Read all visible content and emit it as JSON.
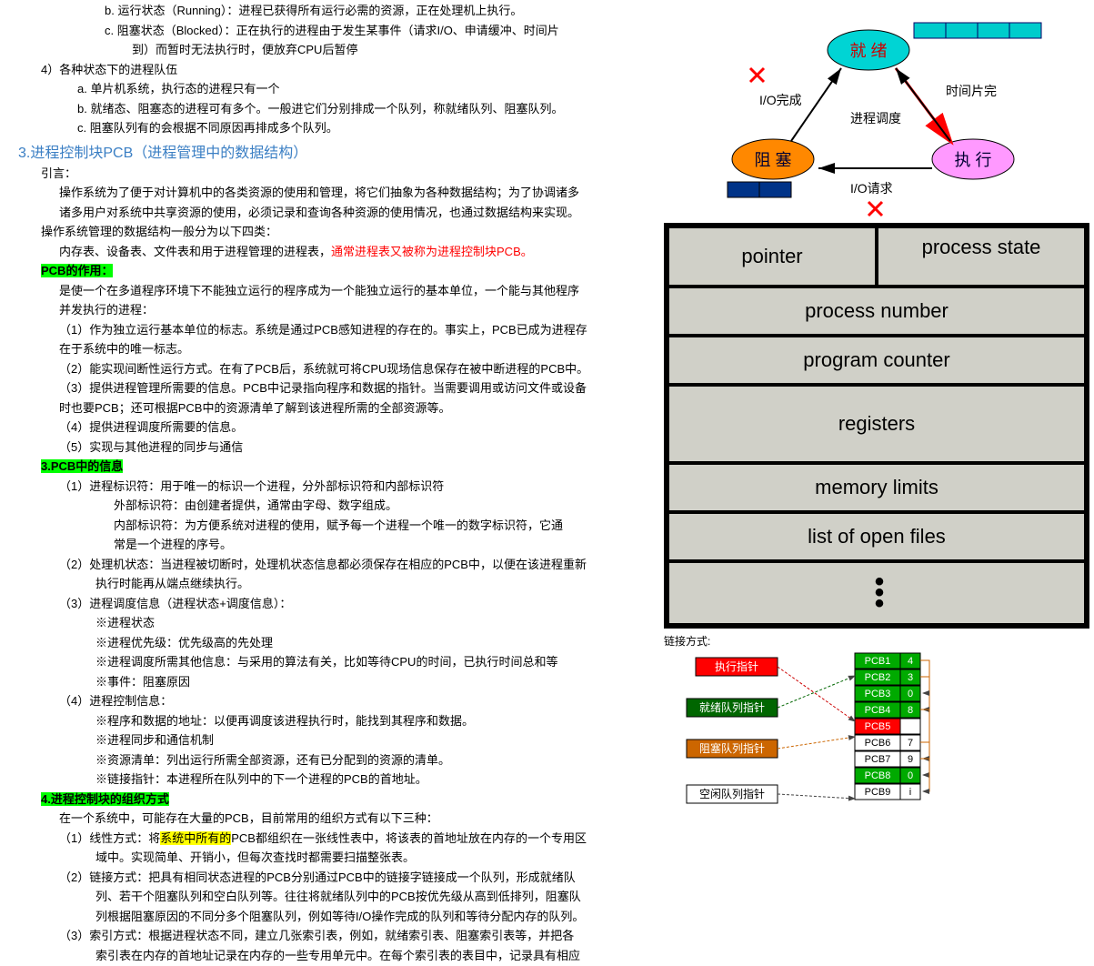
{
  "left": {
    "b": "b.  运行状态（Running）：进程已获得所有运行必需的资源，正在处理机上执行。",
    "c1": "c.  阻塞状态（Blocked）：正在执行的进程由于发生某事件（请求I/O、申请缓冲、时间片",
    "c2": "到）而暂时无法执行时，便放弃CPU后暂停",
    "q4": "4）各种状态下的进程队伍",
    "q4a": "a.   单片机系统，执行态的进程只有一个",
    "q4b": "b.   就绪态、阻塞态的进程可有多个。一般进它们分别排成一个队列，称就绪队列、阻塞队列。",
    "q4c": "c.   阻塞队列有的会根据不同原因再排成多个队列。",
    "title3": "3.进程控制块PCB（进程管理中的数据结构）",
    "intro": "引言：",
    "intro1": "操作系统为了便于对计算机中的各类资源的使用和管理，将它们抽象为各种数据结构；为了协调诸多",
    "intro2": "诸多用户对系统中共享资源的使用，必须记录和查询各种资源的使用情况，也通过数据结构来实现。",
    "os1": "操作系统管理的数据结构一般分为以下四类：",
    "os2": "内存表、设备表、文件表和用于进程管理的进程表，",
    "os2r": "通常进程表又被称为进程控制块PCB。",
    "pcb_role": "PCB的作用：",
    "pr1": "是使一个在多道程序环境下不能独立运行的程序成为一个能独立运行的基本单位，一个能与其他程序",
    "pr2": "并发执行的进程：",
    "pr3": "（1）作为独立运行基本单位的标志。系统是通过PCB感知进程的存在的。事实上，PCB已成为进程存",
    "pr4": "在于系统中的唯一标志。",
    "pr5": "（2）能实现间断性运行方式。在有了PCB后，系统就可将CPU现场信息保存在被中断进程的PCB中。",
    "pr6": "（3）提供进程管理所需要的信息。PCB中记录指向程序和数据的指针。当需要调用或访问文件或设备",
    "pr7": "时也要PCB；还可根据PCB中的资源清单了解到该进程所需的全部资源等。",
    "pr8": "（4）提供进程调度所需要的信息。",
    "pr9": "（5）实现与其他进程的同步与通信",
    "pcb_info": "3.PCB中的信息",
    "pi1": "（1）进程标识符：用于唯一的标识一个进程，分外部标识符和内部标识符",
    "pi2": "外部标识符：由创建者提供，通常由字母、数字组成。",
    "pi3": "内部标识符：为方便系统对进程的使用，赋予每一个进程一个唯一的数字标识符，它通",
    "pi4": "常是一个进程的序号。",
    "pi5": "（2）处理机状态：当进程被切断时，处理机状态信息都必须保存在相应的PCB中，以便在该进程重新",
    "pi6": "执行时能再从端点继续执行。",
    "pi7": "（3）进程调度信息（进程状态+调度信息）：",
    "pi8": "※进程状态",
    "pi9": "※进程优先级：优先级高的先处理",
    "pi10": "※进程调度所需其他信息：与采用的算法有关，比如等待CPU的时间，已执行时间总和等",
    "pi11": "※事件：阻塞原因",
    "pi12": "（4）进程控制信息：",
    "pi13": "※程序和数据的地址：以便再调度该进程执行时，能找到其程序和数据。",
    "pi14": "※进程同步和通信机制",
    "pi15": "※资源清单：列出运行所需全部资源，还有已分配到的资源的清单。",
    "pi16": "※链接指针：本进程所在队列中的下一个进程的PCB的首地址。",
    "pcb_org": "4.进程控制块的组织方式",
    "po1": "在一个系统中，可能存在大量的PCB，目前常用的组织方式有以下三种：",
    "po2a": "（1）线性方式：将",
    "po2b": "系统中所有的",
    "po2c": "PCB都组织在一张线性表中，将该表的首地址放在内存的一个专用区",
    "po3": "域中。实现简单、开销小，但每次查找时都需要扫描整张表。",
    "po4": "（2）链接方式：把具有相同状态进程的PCB分别通过PCB中的链接字链接成一个队列，形成就绪队",
    "po5": "列、若干个阻塞队列和空白队列等。往往将就绪队列中的PCB按优先级从高到低排列，阻塞队",
    "po6": "列根据阻塞原因的不同分多个阻塞队列，例如等待I/O操作完成的队列和等待分配内存的队列。",
    "po7": "（3）索引方式：根据进程状态不同，建立几张索引表，例如，就绪索引表、阻塞索引表等，并把各",
    "po8": "索引表在内存的首地址记录在内存的一些专用单元中。在每个索引表的表目中，记录具有相应"
  },
  "state_diag": {
    "ready": "就  绪",
    "block": "阻  塞",
    "exec": "执  行",
    "io_done": "I/O完成",
    "time_slice": "时间片完",
    "dispatch": "进程调度",
    "io_req": "I/O请求",
    "ready_color": "#00d4d4",
    "block_color": "#ff8800",
    "exec_color": "#ff99ff",
    "box_color": "#00cccc",
    "dark_box": "#003388"
  },
  "pcb_table": {
    "pointer": "pointer",
    "state": "process state",
    "number": "process number",
    "counter": "program counter",
    "registers": "registers",
    "memory": "memory limits",
    "files": "list of open files",
    "dots": ". . .",
    "bg": "#d0d0c8"
  },
  "link_diag": {
    "title": "链接方式:",
    "exec_ptr": "执行指针",
    "ready_ptr": "就绪队列指针",
    "block_ptr": "阻塞队列指针",
    "free_ptr": "空闲队列指针",
    "pcb_rows": [
      {
        "label": "PCB1",
        "val": "4",
        "bg": "#00aa00"
      },
      {
        "label": "PCB2",
        "val": "3",
        "bg": "#00aa00"
      },
      {
        "label": "PCB3",
        "val": "0",
        "bg": "#00aa00"
      },
      {
        "label": "PCB4",
        "val": "8",
        "bg": "#00aa00"
      },
      {
        "label": "PCB5",
        "val": "",
        "bg": "#ff0000"
      },
      {
        "label": "PCB6",
        "val": "7",
        "bg": "#ffffff"
      },
      {
        "label": "PCB7",
        "val": "9",
        "bg": "#ffffff"
      },
      {
        "label": "PCB8",
        "val": "0",
        "bg": "#00aa00"
      },
      {
        "label": "PCB9",
        "val": "i",
        "bg": "#ffffff"
      }
    ],
    "exec_color": "#ff0000",
    "ready_color": "#006600",
    "block_color": "#cc6600",
    "free_color": "#ffffff"
  }
}
